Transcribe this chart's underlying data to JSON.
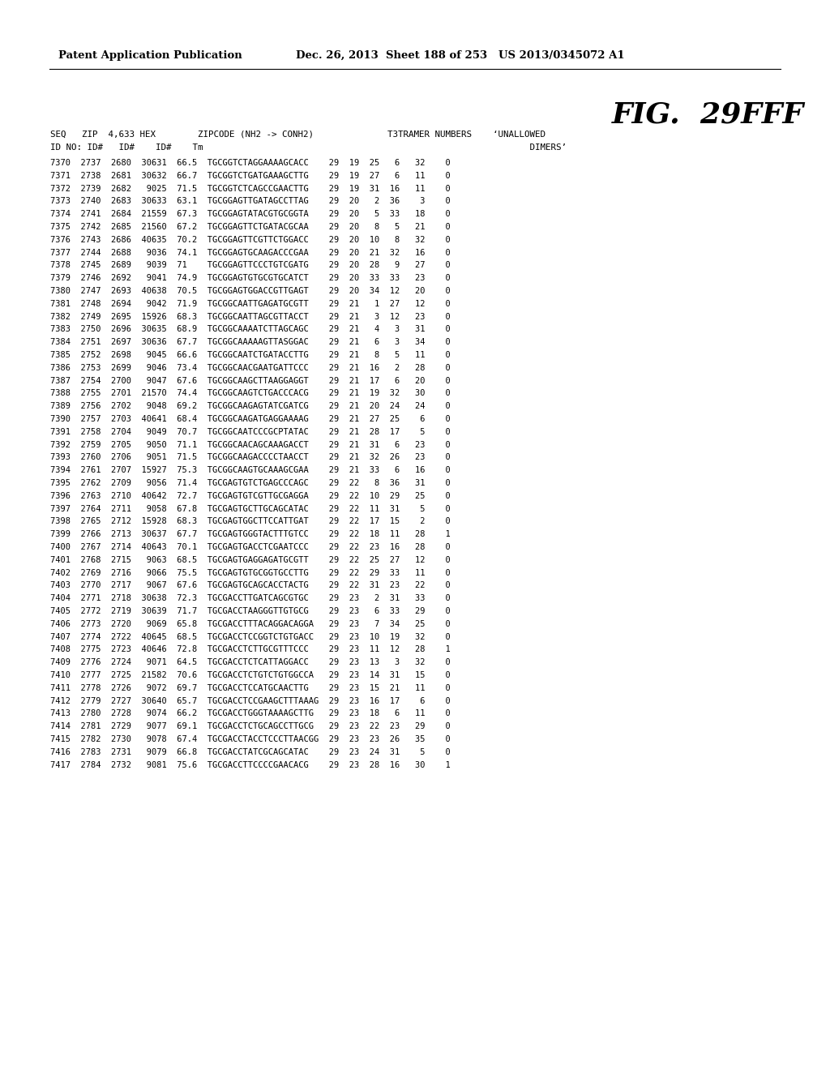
{
  "header_left": "Patent Application Publication",
  "header_right": "Dec. 26, 2013  Sheet 188 of 253   US 2013/0345072 A1",
  "fig_title": "FIG.  29FFF",
  "col_header1": "SEQ   ZIP  4,633 HEX        ZIPCODE (NH2 -> CONH2)              T3TRAMER NUMBERS    ‘UNALLOWED",
  "col_header2": "ID NO: ID#   ID#    ID#    Tm                                                              DIMERS’",
  "rows": [
    "7370  2737  2680  30631  66.5  TGCGGTCTAGGAAAAGCACC    29  19  25   6   32    0",
    "7371  2738  2681  30632  66.7  TGCGGTCTGATGAAAGCTTG    29  19  27   6   11    0",
    "7372  2739  2682   9025  71.5  TGCGGTCTCAGCCGAACTTG    29  19  31  16   11    0",
    "7373  2740  2683  30633  63.1  TGCGGAGTTGATAGCCTTAG    29  20   2  36    3    0",
    "7374  2741  2684  21559  67.3  TGCGGAGTATACGTGCGGTA    29  20   5  33   18    0",
    "7375  2742  2685  21560  67.2  TGCGGAGTTCTGATACGCAA    29  20   8   5   21    0",
    "7376  2743  2686  40635  70.2  TGCGGAGTTCGTTCTGGACC    29  20  10   8   32    0",
    "7377  2744  2688   9036  74.1  TGCGGAGTGCAAGACCCGAA    29  20  21  32   16    0",
    "7378  2745  2689   9039  71    TGCGGAGTTCCCTGTCGATG    29  20  28   9   27    0",
    "7379  2746  2692   9041  74.9  TGCGGAGTGTGCGTGCATCT    29  20  33  33   23    0",
    "7380  2747  2693  40638  70.5  TGCGGAGTGGACCGTTGAGT    29  20  34  12   20    0",
    "7381  2748  2694   9042  71.9  TGCGGCAATTGAGATGCGTT    29  21   1  27   12    0",
    "7382  2749  2695  15926  68.3  TGCGGCAATTAGCGTTACCT    29  21   3  12   23    0",
    "7383  2750  2696  30635  68.9  TGCGGCAAAATCTTAGCAGC    29  21   4   3   31    0",
    "7384  2751  2697  30636  67.7  TGCGGCAAAAAGTTASGGAC    29  21   6   3   34    0",
    "7385  2752  2698   9045  66.6  TGCGGCAATCTGATACCTTG    29  21   8   5   11    0",
    "7386  2753  2699   9046  73.4  TGCGGCAACGAATGATTCCC    29  21  16   2   28    0",
    "7387  2754  2700   9047  67.6  TGCGGCAAGCTTAAGGAGGT    29  21  17   6   20    0",
    "7388  2755  2701  21570  74.4  TGCGGCAAGTCTGACCCACG    29  21  19  32   30    0",
    "7389  2756  2702   9048  69.2  TGCGGCAAGAGTATCGATCG    29  21  20  24   24    0",
    "7390  2757  2703  40641  68.4  TGCGGCAAGATGAGGAAAAG    29  21  27  25    6    0",
    "7391  2758  2704   9049  70.7  TGCGGCAATCCCGCPTATAC    29  21  28  17    5    0",
    "7392  2759  2705   9050  71.1  TGCGGCAACAGCAAAGACCT    29  21  31   6   23    0",
    "7393  2760  2706   9051  71.5  TGCGGCAAGACCCCTAACCT    29  21  32  26   23    0",
    "7394  2761  2707  15927  75.3  TGCGGCAAGTGCAAAGCGAA    29  21  33   6   16    0",
    "7395  2762  2709   9056  71.4  TGCGAGTGTCTGAGCCCAGC    29  22   8  36   31    0",
    "7396  2763  2710  40642  72.7  TGCGAGTGTCGTTGCGAGGA    29  22  10  29   25    0",
    "7397  2764  2711   9058  67.8  TGCGAGTGCTTGCAGCATAC    29  22  11  31    5    0",
    "7398  2765  2712  15928  68.3  TGCGAGTGGCTTCCATTGAT    29  22  17  15    2    0",
    "7399  2766  2713  30637  67.7  TGCGAGTGGGTACTTTGTCC    29  22  18  11   28    1",
    "7400  2767  2714  40643  70.1  TGCGAGTGACCTCGAATCCC    29  22  23  16   28    0",
    "7401  2768  2715   9063  68.5  TGCGAGTGAGGAGATGCGTT    29  22  25  27   12    0",
    "7402  2769  2716   9066  75.5  TGCGAGTGTGCGGTGCCTTG    29  22  29  33   11    0",
    "7403  2770  2717   9067  67.6  TGCGAGTGCAGCACCTACTG    29  22  31  23   22    0",
    "7404  2771  2718  30638  72.3  TGCGACCTTGATCAGCGTGC    29  23   2  31   33    0",
    "7405  2772  2719  30639  71.7  TGCGACCTAAGGGTTGTGCG    29  23   6  33   29    0",
    "7406  2773  2720   9069  65.8  TGCGACCTTTACAGGACAGGA   29  23   7  34   25    0",
    "7407  2774  2722  40645  68.5  TGCGACCTCCGGTCTGTGACC   29  23  10  19   32    0",
    "7408  2775  2723  40646  72.8  TGCGACCTCTTGCGTTTCCC    29  23  11  12   28    1",
    "7409  2776  2724   9071  64.5  TGCGACCTCTCATTAGGACC    29  23  13   3   32    0",
    "7410  2777  2725  21582  70.6  TGCGACCTCTGTCTGTGGCCA   29  23  14  31   15    0",
    "7411  2778  2726   9072  69.7  TGCGACCTCCATGCAACTTG    29  23  15  21   11    0",
    "7412  2779  2727  30640  65.7  TGCGACCTCCGAAGCTTTAAAG  29  23  16  17    6    0",
    "7413  2780  2728   9074  66.2  TGCGACCTGGGTAAAAGCTTG   29  23  18   6   11    0",
    "7414  2781  2729   9077  69.1  TGCGACCTCTGCAGCCTTGCG   29  23  22  23   29    0",
    "7415  2782  2730   9078  67.4  TGCGACCTACCTCCCTTAACGG  29  23  23  26   35    0",
    "7416  2783  2731   9079  66.8  TGCGACCTATCGCAGCATAC    29  23  24  31    5    0",
    "7417  2784  2732   9081  75.6  TGCGACCTTCCCCGAACACG    29  23  28  16   30    1"
  ],
  "background_color": "#ffffff",
  "text_color": "#000000"
}
